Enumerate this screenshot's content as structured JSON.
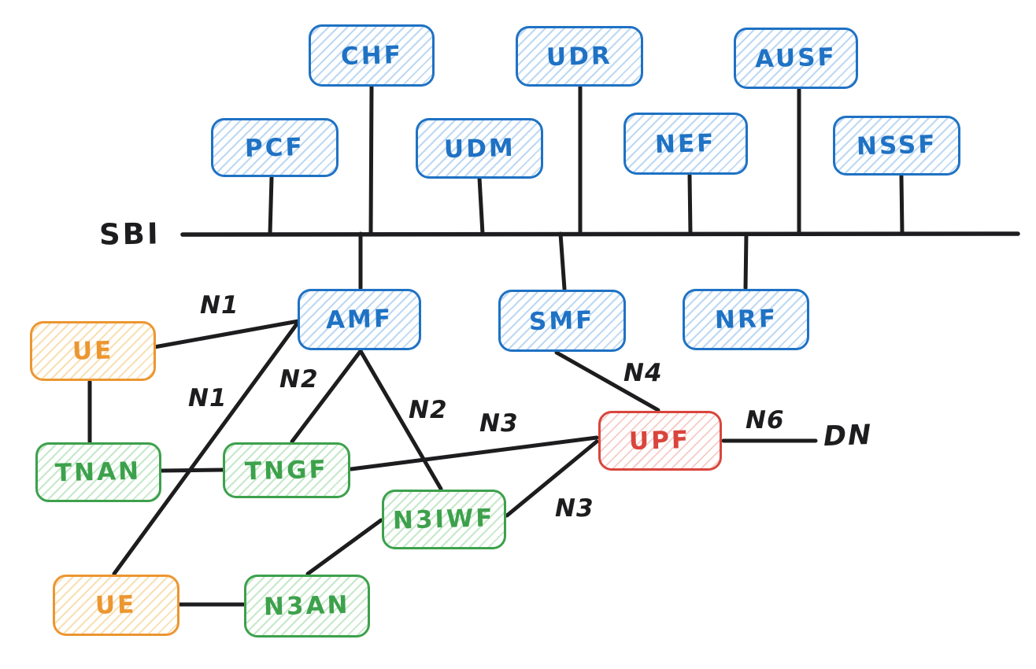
{
  "diagram": {
    "bus": {
      "label": "SBI"
    },
    "external": {
      "dn_label": "DN"
    },
    "colors": {
      "network_function_blue": "#1f72c4",
      "access_green": "#3da14c",
      "ue_orange": "#ec9631",
      "upf_red": "#d9453c",
      "line_black": "#1d1d1f"
    },
    "nodes": [
      {
        "id": "chf",
        "label": "CHF",
        "role": "blue"
      },
      {
        "id": "udr",
        "label": "UDR",
        "role": "blue"
      },
      {
        "id": "ausf",
        "label": "AUSF",
        "role": "blue"
      },
      {
        "id": "pcf",
        "label": "PCF",
        "role": "blue"
      },
      {
        "id": "udm",
        "label": "UDM",
        "role": "blue"
      },
      {
        "id": "nef",
        "label": "NEF",
        "role": "blue"
      },
      {
        "id": "nssf",
        "label": "NSSF",
        "role": "blue"
      },
      {
        "id": "amf",
        "label": "AMF",
        "role": "blue"
      },
      {
        "id": "smf",
        "label": "SMF",
        "role": "blue"
      },
      {
        "id": "nrf",
        "label": "NRF",
        "role": "blue"
      },
      {
        "id": "ue-upper",
        "label": "UE",
        "role": "orange"
      },
      {
        "id": "tnan",
        "label": "TNAN",
        "role": "green"
      },
      {
        "id": "tngf",
        "label": "TNGF",
        "role": "green"
      },
      {
        "id": "n3iwf",
        "label": "N3IWF",
        "role": "green"
      },
      {
        "id": "upf",
        "label": "UPF",
        "role": "red"
      },
      {
        "id": "ue-lower",
        "label": "UE",
        "role": "orange"
      },
      {
        "id": "n3an",
        "label": "N3AN",
        "role": "green"
      }
    ],
    "bus_attached_nodes": [
      "CHF",
      "UDR",
      "AUSF",
      "PCF",
      "UDM",
      "NEF",
      "NSSF",
      "AMF",
      "SMF",
      "NRF"
    ],
    "edges": [
      {
        "id": "ue-upper-amf",
        "from": "UE (upper)",
        "to": "AMF",
        "label": "N1"
      },
      {
        "id": "ue-lower-amf",
        "from": "UE (lower)",
        "to": "AMF",
        "label": "N1"
      },
      {
        "id": "ue-upper-tnan",
        "from": "UE (upper)",
        "to": "TNAN",
        "label": ""
      },
      {
        "id": "tnan-tngf",
        "from": "TNAN",
        "to": "TNGF",
        "label": ""
      },
      {
        "id": "tngf-amf",
        "from": "TNGF",
        "to": "AMF",
        "label": "N2"
      },
      {
        "id": "amf-n3iwf",
        "from": "AMF",
        "to": "N3IWF",
        "label": "N2"
      },
      {
        "id": "tngf-upf",
        "from": "TNGF",
        "to": "UPF",
        "label": "N3"
      },
      {
        "id": "n3iwf-upf",
        "from": "N3IWF",
        "to": "UPF",
        "label": "N3"
      },
      {
        "id": "smf-upf",
        "from": "SMF",
        "to": "UPF",
        "label": "N4"
      },
      {
        "id": "upf-dn",
        "from": "UPF",
        "to": "DN",
        "label": "N6"
      },
      {
        "id": "ue-lower-n3an",
        "from": "UE (lower)",
        "to": "N3AN",
        "label": ""
      },
      {
        "id": "n3an-n3iwf",
        "from": "N3AN",
        "to": "N3IWF",
        "label": ""
      }
    ]
  }
}
